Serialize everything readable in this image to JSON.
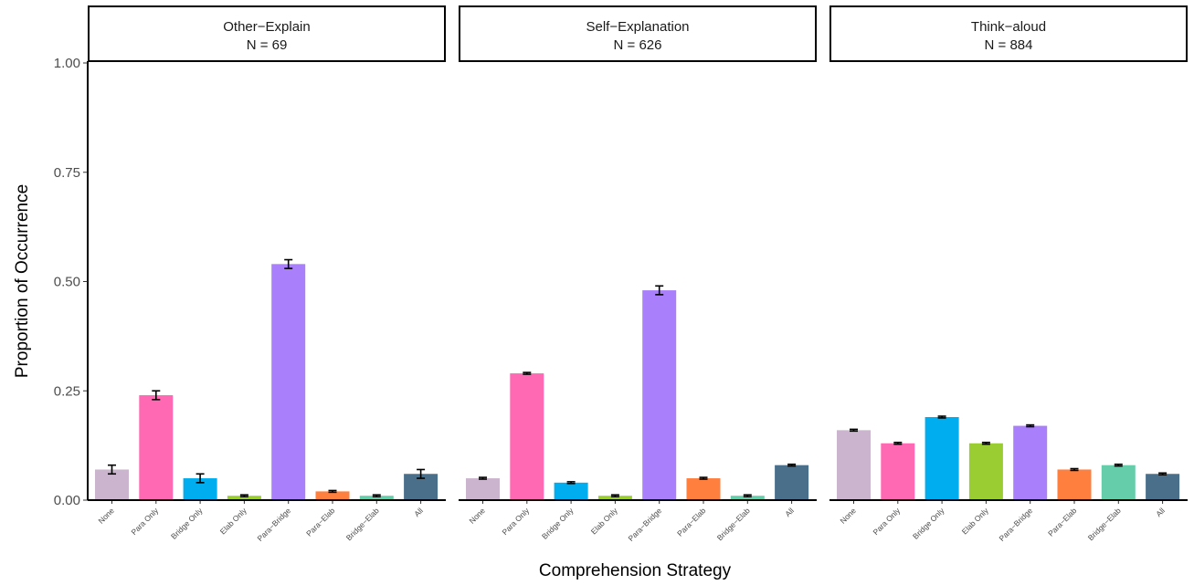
{
  "chart_data": {
    "type": "bar",
    "xlabel": "Comprehension Strategy",
    "ylabel": "Proportion of Occurrence",
    "ylim": [
      0,
      1.05
    ],
    "yticks": [
      "0.00",
      "0.25",
      "0.50",
      "0.75",
      "1.00"
    ],
    "ytick_values": [
      0,
      0.25,
      0.5,
      0.75,
      1.0
    ],
    "categories": [
      "None",
      "Para Only",
      "Bridge Only",
      "Elab Only",
      "Para−Bridge",
      "Para−Elab",
      "Bridge−Elab",
      "All"
    ],
    "colors": [
      "#cbb5ce",
      "#ff69b4",
      "#00aeef",
      "#9acd32",
      "#a97ffb",
      "#ff7f3f",
      "#66cdaa",
      "#4a6f8a"
    ],
    "grid": false,
    "legend": "none",
    "panels": [
      {
        "name": "Other−Explain",
        "n_label": "N = 69",
        "values": [
          0.07,
          0.24,
          0.05,
          0.01,
          0.54,
          0.02,
          0.01,
          0.06
        ],
        "errors": [
          0.01,
          0.01,
          0.01,
          0.002,
          0.01,
          0.002,
          0.002,
          0.01
        ]
      },
      {
        "name": "Self−Explanation",
        "n_label": "N = 626",
        "values": [
          0.05,
          0.29,
          0.04,
          0.01,
          0.48,
          0.05,
          0.01,
          0.08
        ],
        "errors": [
          0.002,
          0.002,
          0.002,
          0.002,
          0.01,
          0.002,
          0.002,
          0.002
        ]
      },
      {
        "name": "Think−aloud",
        "n_label": "N = 884",
        "values": [
          0.16,
          0.13,
          0.19,
          0.13,
          0.17,
          0.07,
          0.08,
          0.06
        ],
        "errors": [
          0.002,
          0.002,
          0.002,
          0.002,
          0.002,
          0.002,
          0.002,
          0.002
        ]
      }
    ]
  }
}
